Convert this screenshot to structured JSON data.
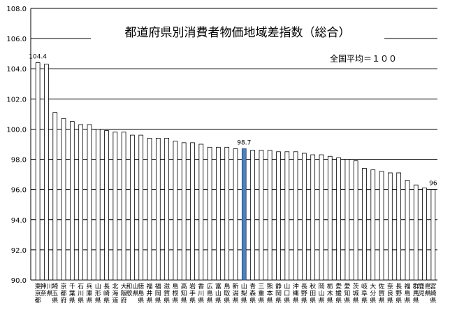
{
  "chart_data": {
    "type": "bar",
    "title": "都道府県別消費者物価地域差指数（総合）",
    "annotation": "全国平均＝１００",
    "xlabel": "",
    "ylabel": "",
    "ylim": [
      90,
      108
    ],
    "yticks": [
      "90.0",
      "92.0",
      "94.0",
      "96.0",
      "98.0",
      "100.0",
      "102.0",
      "104.0",
      "106.0",
      "108.0"
    ],
    "grid": true,
    "categories": [
      "東京都",
      "神奈川県",
      "埼玉県",
      "京都府",
      "千葉県",
      "石川県",
      "兵庫県",
      "山形県",
      "長崎県",
      "北海道",
      "大阪府",
      "和歌山県",
      "徳島県",
      "福井県",
      "福岡県",
      "滋賀県",
      "島根県",
      "高知県",
      "岩手県",
      "香川県",
      "広島県",
      "富山県",
      "鳥取県",
      "新潟県",
      "山梨県",
      "青森県",
      "三重県",
      "熊本県",
      "静岡県",
      "山口県",
      "沖縄県",
      "長野県",
      "秋田県",
      "岡山県",
      "栃木県",
      "愛媛県",
      "愛知県",
      "茨城県",
      "岐阜県",
      "大分県",
      "佐賀県",
      "奈良県",
      "長野県",
      "福島県",
      "群馬県",
      "鹿児島県",
      "宮崎県"
    ],
    "values": [
      104.4,
      104.3,
      101.1,
      100.7,
      100.5,
      100.3,
      100.3,
      100.0,
      99.9,
      99.8,
      99.8,
      99.6,
      99.6,
      99.4,
      99.4,
      99.4,
      99.2,
      99.1,
      99.1,
      99.0,
      98.8,
      98.8,
      98.8,
      98.7,
      98.7,
      98.6,
      98.6,
      98.6,
      98.5,
      98.5,
      98.5,
      98.4,
      98.3,
      98.3,
      98.2,
      98.1,
      98.0,
      97.9,
      97.4,
      97.3,
      97.2,
      97.1,
      97.1,
      96.6,
      96.3,
      96.1,
      96.0
    ],
    "data_labels": [
      {
        "index": 0,
        "text": "104.4"
      },
      {
        "index": 24,
        "text": "98.7"
      },
      {
        "index": 46,
        "text": "96"
      }
    ],
    "highlight_index": 24,
    "colors": {
      "bar": "#ffffff",
      "bar_stroke": "#000000",
      "highlight": "#4f81bd",
      "highlight_stroke": "#1f3f6f",
      "grid": "#000000"
    }
  }
}
